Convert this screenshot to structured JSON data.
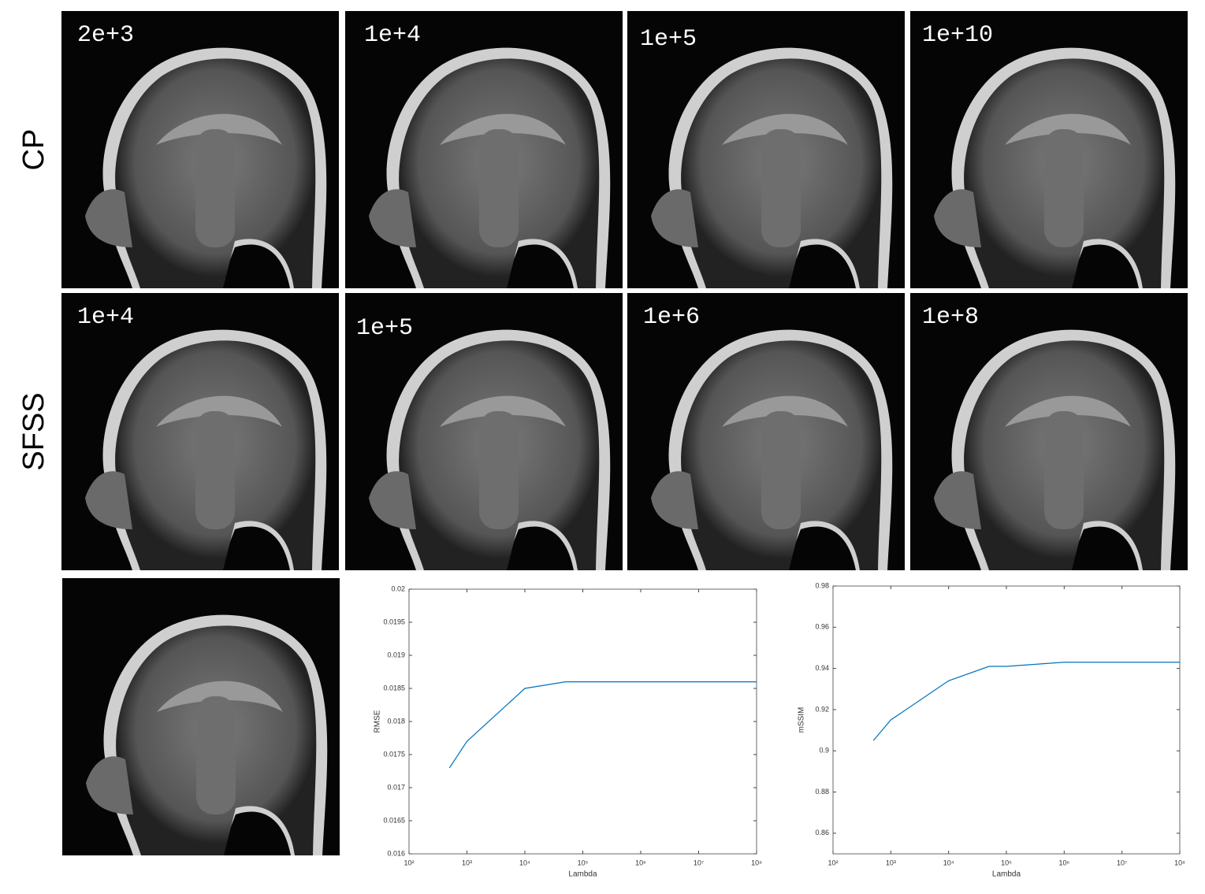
{
  "row_labels": [
    "CP",
    "SFSS"
  ],
  "panel_labels": [
    [
      "2e+3",
      "1e+4",
      "1e+5",
      "1e+10"
    ],
    [
      "1e+4",
      "1e+5",
      "1e+6",
      "1e+8"
    ]
  ],
  "chart_data": [
    {
      "type": "line",
      "xlabel": "Lambda",
      "ylabel": "RMSE",
      "xscale": "log",
      "x": [
        500,
        1000,
        10000,
        50000,
        100000000
      ],
      "values": [
        0.0173,
        0.0177,
        0.0185,
        0.0186,
        0.0186
      ],
      "color": "#0072bd",
      "xlim": [
        100,
        100000000
      ],
      "xticks": [
        {
          "value": 100,
          "label": "10²"
        },
        {
          "value": 1000,
          "label": "10³"
        },
        {
          "value": 10000,
          "label": "10⁴"
        },
        {
          "value": 100000,
          "label": "10⁵"
        },
        {
          "value": 1000000,
          "label": "10⁶"
        },
        {
          "value": 10000000,
          "label": "10⁷"
        },
        {
          "value": 100000000,
          "label": "10⁸"
        }
      ],
      "ylim": [
        0.016,
        0.02
      ],
      "yticks": [
        0.016,
        0.0165,
        0.017,
        0.0175,
        0.018,
        0.0185,
        0.019,
        0.0195,
        0.02
      ]
    },
    {
      "type": "line",
      "xlabel": "Lambda",
      "ylabel": "mSSIM",
      "xscale": "log",
      "x": [
        500,
        1000,
        10000,
        50000,
        100000,
        1000000,
        100000000
      ],
      "values": [
        0.905,
        0.915,
        0.934,
        0.941,
        0.941,
        0.943,
        0.943
      ],
      "color": "#0072bd",
      "xlim": [
        100,
        100000000
      ],
      "xticks": [
        {
          "value": 100,
          "label": "10²"
        },
        {
          "value": 1000,
          "label": "10³"
        },
        {
          "value": 10000,
          "label": "10⁴"
        },
        {
          "value": 100000,
          "label": "10⁵"
        },
        {
          "value": 1000000,
          "label": "10⁶"
        },
        {
          "value": 10000000,
          "label": "10⁷"
        },
        {
          "value": 100000000,
          "label": "10⁸"
        }
      ],
      "ylim": [
        0.85,
        0.98
      ],
      "yticks": [
        0.86,
        0.88,
        0.9,
        0.92,
        0.94,
        0.96,
        0.98
      ]
    }
  ]
}
